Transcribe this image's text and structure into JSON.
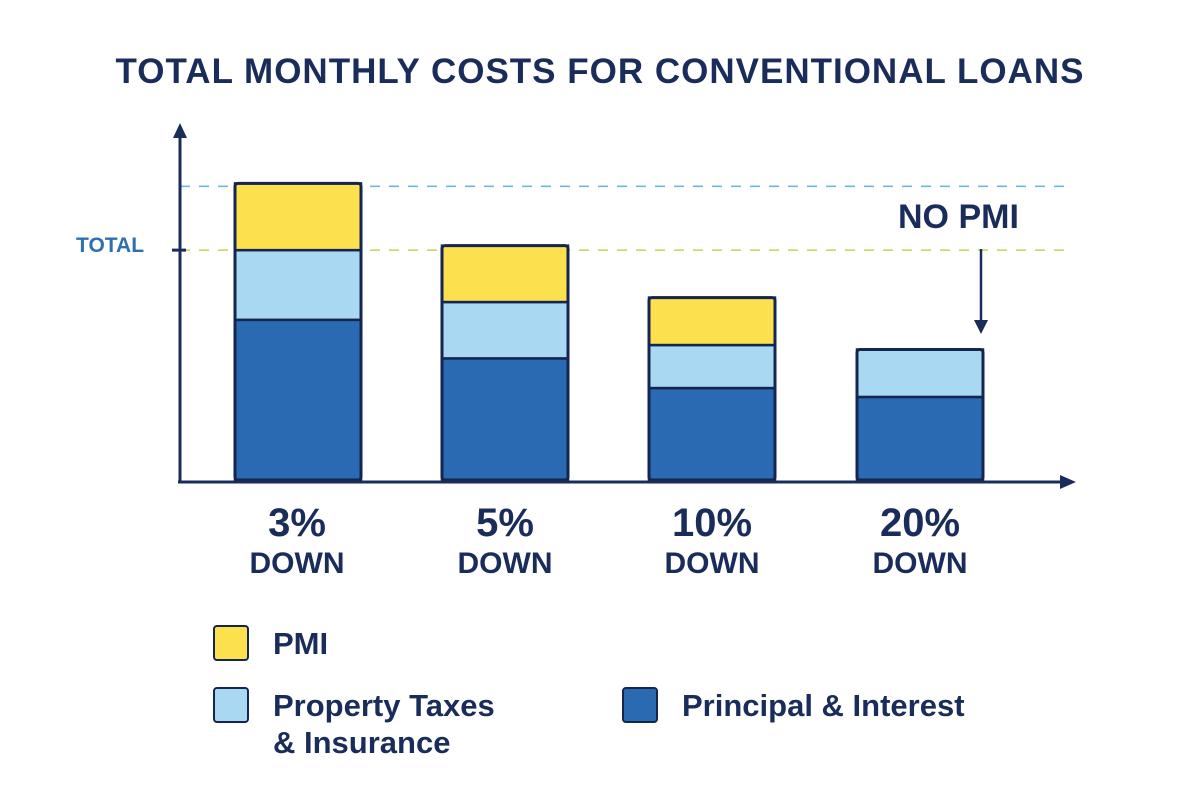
{
  "chart_data": {
    "type": "bar",
    "stacked": true,
    "title": "TOTAL MONTHLY COSTS FOR CONVENTIONAL LOANS",
    "xlabel": "",
    "ylabel": "",
    "y_tick_labels": [
      "TOTAL"
    ],
    "categories": [
      {
        "pct": "3%",
        "sub": "DOWN"
      },
      {
        "pct": "5%",
        "sub": "DOWN"
      },
      {
        "pct": "10%",
        "sub": "DOWN"
      },
      {
        "pct": "20%",
        "sub": "DOWN"
      }
    ],
    "series": [
      {
        "name": "Principal & Interest",
        "color": "#2a6ab3",
        "values": [
          54,
          41,
          31,
          28
        ]
      },
      {
        "name": "Property Taxes & Insurance",
        "color": "#a9d8f2",
        "values": [
          23.5,
          19,
          14.5,
          16
        ]
      },
      {
        "name": "PMI",
        "color": "#fde04d",
        "values": [
          22.5,
          19,
          16,
          0
        ]
      }
    ],
    "reference_lines": [
      {
        "value": 99,
        "color": "#6fb8d6",
        "style": "dashed",
        "label": ""
      },
      {
        "value": 77.5,
        "color": "#c9cf5a",
        "style": "dashed",
        "label": "TOTAL"
      }
    ],
    "annotation": {
      "text": "NO PMI",
      "target_category": 3
    },
    "ylim": [
      0,
      118
    ],
    "grid": false,
    "y_axis_values_shown": false,
    "legend": {
      "placement": "bottom",
      "items": [
        {
          "label": "PMI",
          "color": "#fde04d"
        },
        {
          "label": "Property Taxes",
          "label2": "& Insurance",
          "color": "#a9d8f2"
        },
        {
          "label": "Principal & Interest",
          "color": "#2a6ab3"
        }
      ]
    },
    "axis_color": "#1a2d5a"
  }
}
